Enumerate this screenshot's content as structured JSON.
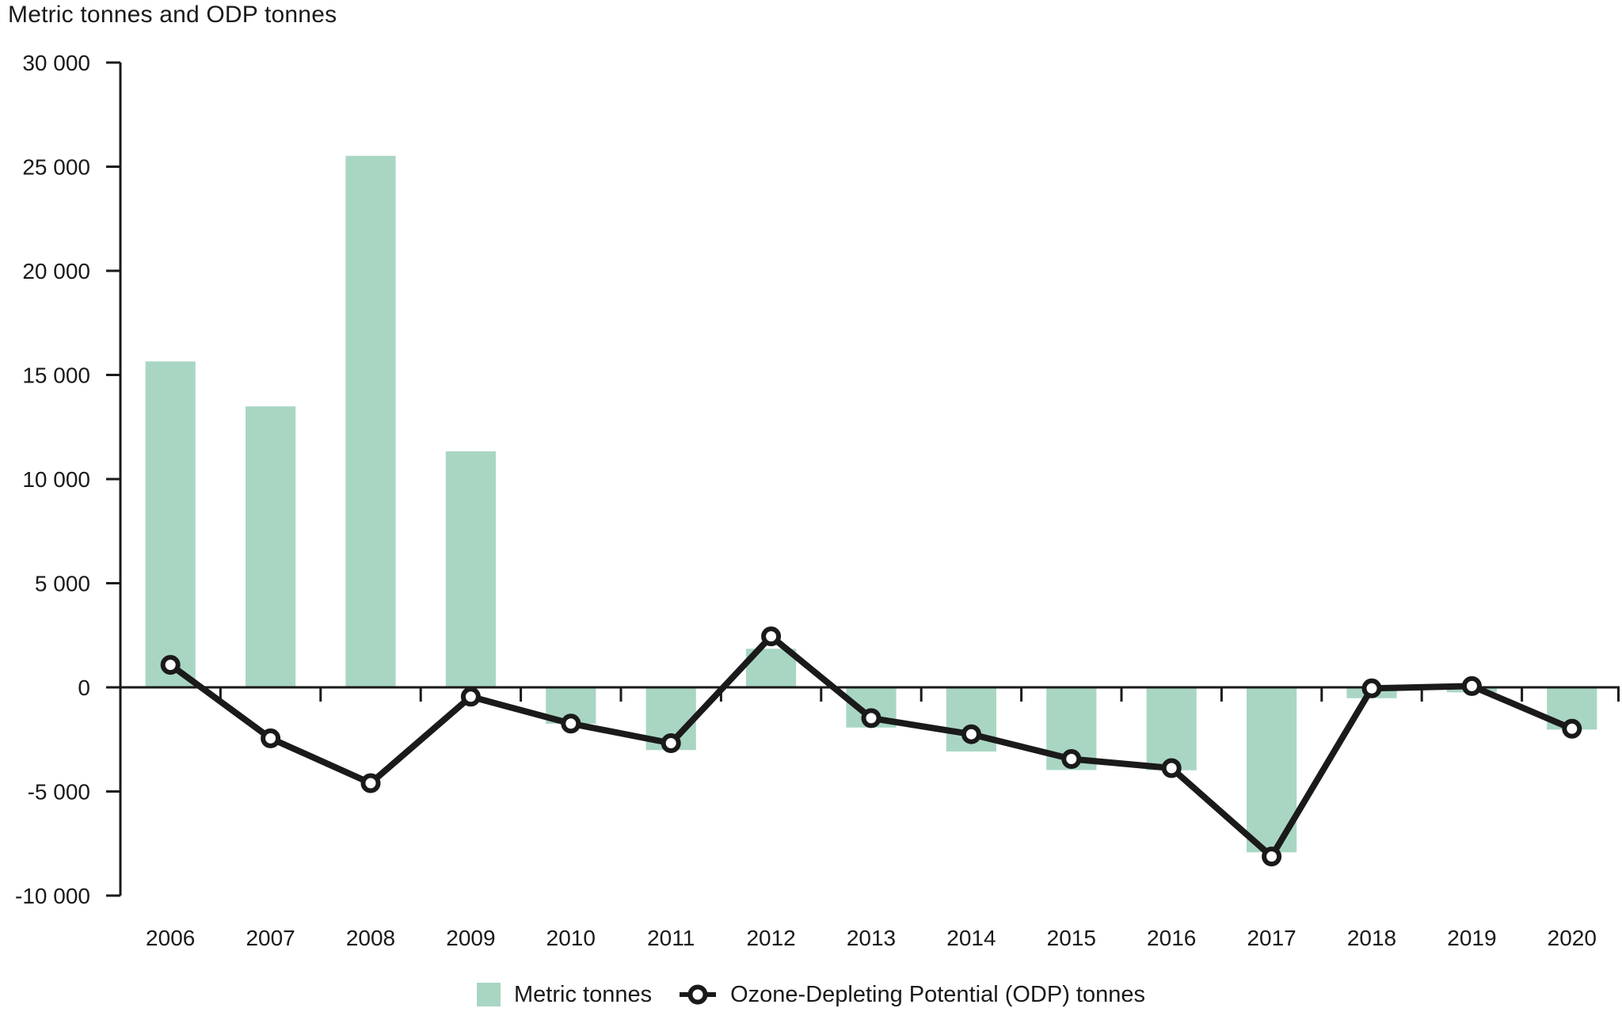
{
  "title": "Metric tonnes and ODP tonnes",
  "colors": {
    "bar": "#a9d6c3",
    "line": "#1a1a1a",
    "axis": "#1a1a1a",
    "text": "#1a1a1a",
    "marker_fill": "#ffffff",
    "background": "#ffffff"
  },
  "chart_data": {
    "type": "bar+line",
    "title": "Metric tonnes and ODP tonnes",
    "categories": [
      "2006",
      "2007",
      "2008",
      "2009",
      "2010",
      "2011",
      "2012",
      "2013",
      "2014",
      "2015",
      "2016",
      "2017",
      "2018",
      "2019",
      "2020"
    ],
    "series": [
      {
        "name": "Metric tonnes",
        "type": "bar",
        "values": [
          15650,
          13490,
          25520,
          11330,
          -1750,
          -3010,
          1850,
          -1930,
          -3080,
          -3970,
          -3980,
          -7920,
          -520,
          -240,
          -2030
        ]
      },
      {
        "name": "Ozone-Depleting Potential (ODP) tonnes",
        "type": "line",
        "marker": "circle",
        "values": [
          1080,
          -2450,
          -4600,
          -450,
          -1740,
          -2680,
          2450,
          -1480,
          -2250,
          -3440,
          -3880,
          -8120,
          -50,
          60,
          -1990
        ]
      }
    ],
    "ylim": [
      -10000,
      30000
    ],
    "ytick_step": 5000,
    "ytick_labels": [
      "30 000",
      "25 000",
      "20 000",
      "15 000",
      "10 000",
      "5 000",
      "0",
      "-5 000",
      "-10 000"
    ],
    "xlabel": "",
    "ylabel": "Metric tonnes and ODP tonnes",
    "grid": false,
    "legend_position": "bottom"
  }
}
